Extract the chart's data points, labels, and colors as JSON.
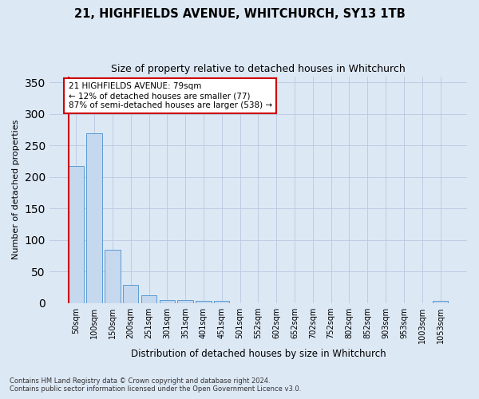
{
  "title1": "21, HIGHFIELDS AVENUE, WHITCHURCH, SY13 1TB",
  "title2": "Size of property relative to detached houses in Whitchurch",
  "xlabel": "Distribution of detached houses by size in Whitchurch",
  "ylabel": "Number of detached properties",
  "categories": [
    "50sqm",
    "100sqm",
    "150sqm",
    "200sqm",
    "251sqm",
    "301sqm",
    "351sqm",
    "401sqm",
    "451sqm",
    "501sqm",
    "552sqm",
    "602sqm",
    "652sqm",
    "702sqm",
    "752sqm",
    "802sqm",
    "852sqm",
    "903sqm",
    "953sqm",
    "1003sqm",
    "1053sqm"
  ],
  "values": [
    217,
    270,
    85,
    29,
    12,
    5,
    5,
    4,
    4,
    0,
    0,
    0,
    0,
    0,
    0,
    0,
    0,
    0,
    0,
    0,
    4
  ],
  "bar_color": "#c5d8ee",
  "bar_edge_color": "#5b9bd5",
  "annotation_text": "21 HIGHFIELDS AVENUE: 79sqm\n← 12% of detached houses are smaller (77)\n87% of semi-detached houses are larger (538) →",
  "annotation_box_color": "#ffffff",
  "annotation_border_color": "#cc0000",
  "vline_color": "#cc0000",
  "footnote1": "Contains HM Land Registry data © Crown copyright and database right 2024.",
  "footnote2": "Contains public sector information licensed under the Open Government Licence v3.0.",
  "background_color": "#dde8f5",
  "plot_bg_color": "#dde8f5",
  "ylim": [
    0,
    360
  ],
  "yticks": [
    0,
    50,
    100,
    150,
    200,
    250,
    300,
    350
  ]
}
